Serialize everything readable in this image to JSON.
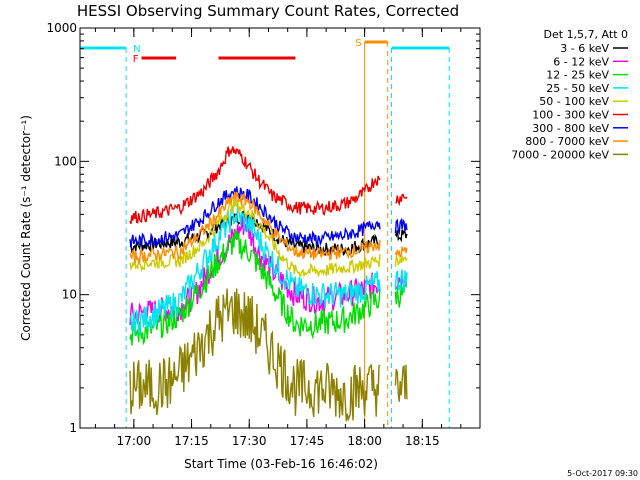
{
  "chart_data": {
    "type": "line",
    "title": "HESSI Observing Summary Count Rates, Corrected",
    "ylabel": "Corrected Count Rate (s⁻¹ detector⁻¹)",
    "xlabel": "Start Time (03-Feb-16 16:46:02)",
    "y_scale": "log",
    "ylim": [
      1,
      1000
    ],
    "y_ticks": [
      1,
      10,
      100,
      1000
    ],
    "y_tick_labels": [
      "1",
      "10",
      "100",
      "1000"
    ],
    "xlim": [
      "16:46",
      "18:30"
    ],
    "x_ticks": [
      "17:00",
      "17:15",
      "17:30",
      "17:45",
      "18:00",
      "18:15"
    ],
    "grid": false,
    "legend_header": "Det 1,5,7, Att 0",
    "legend_placement": "top-right outside",
    "timestamp": "5-Oct-2017 09:30",
    "data_intervals": [
      [
        "16:59",
        "18:04"
      ],
      [
        "18:08",
        "18:11"
      ]
    ],
    "flags": [
      {
        "label": "N",
        "color": "#00e5ee",
        "intervals": [
          [
            "16:46",
            "16:58"
          ],
          [
            "18:07",
            "18:22"
          ]
        ]
      },
      {
        "label": "F",
        "color": "#ee0000",
        "intervals": [
          [
            "17:02",
            "17:11"
          ],
          [
            "17:22",
            "17:42"
          ]
        ]
      },
      {
        "label": "S",
        "color": "#ff8c00",
        "intervals": [
          [
            "18:00",
            "18:06"
          ]
        ]
      }
    ],
    "series": [
      {
        "name": "3 - 6 keV",
        "color": "#000000",
        "values": [
          [
            "16:59",
            23
          ],
          [
            "17:05",
            24
          ],
          [
            "17:12",
            25
          ],
          [
            "17:18",
            28
          ],
          [
            "17:22",
            33
          ],
          [
            "17:26",
            37
          ],
          [
            "17:30",
            40
          ],
          [
            "17:34",
            32
          ],
          [
            "17:38",
            26
          ],
          [
            "17:42",
            23
          ],
          [
            "17:48",
            22
          ],
          [
            "17:55",
            22
          ],
          [
            "18:00",
            24
          ],
          [
            "18:03",
            25
          ],
          [
            "18:08",
            27
          ],
          [
            "18:10",
            28
          ]
        ]
      },
      {
        "name": "6 - 12 keV",
        "color": "#ee00ee",
        "values": [
          [
            "16:59",
            7
          ],
          [
            "17:05",
            7.5
          ],
          [
            "17:12",
            8
          ],
          [
            "17:16",
            10
          ],
          [
            "17:20",
            16
          ],
          [
            "17:25",
            25
          ],
          [
            "17:29",
            35
          ],
          [
            "17:32",
            22
          ],
          [
            "17:36",
            15
          ],
          [
            "17:42",
            10
          ],
          [
            "17:48",
            9
          ],
          [
            "17:55",
            10
          ],
          [
            "18:00",
            11
          ],
          [
            "18:03",
            12
          ],
          [
            "18:08",
            13
          ],
          [
            "18:10",
            14
          ]
        ]
      },
      {
        "name": "12 - 25 keV",
        "color": "#00dd00",
        "values": [
          [
            "16:59",
            5
          ],
          [
            "17:05",
            5.5
          ],
          [
            "17:12",
            7
          ],
          [
            "17:18",
            12
          ],
          [
            "17:22",
            18
          ],
          [
            "17:26",
            25
          ],
          [
            "17:30",
            21
          ],
          [
            "17:34",
            14
          ],
          [
            "17:38",
            9
          ],
          [
            "17:42",
            6
          ],
          [
            "17:48",
            6
          ],
          [
            "17:55",
            6.5
          ],
          [
            "18:00",
            8
          ],
          [
            "18:03",
            9
          ],
          [
            "18:08",
            10
          ],
          [
            "18:10",
            10
          ]
        ]
      },
      {
        "name": "25 - 50 keV",
        "color": "#00e5ee",
        "values": [
          [
            "16:59",
            6
          ],
          [
            "17:05",
            7
          ],
          [
            "17:12",
            9
          ],
          [
            "17:18",
            17
          ],
          [
            "17:22",
            27
          ],
          [
            "17:26",
            40
          ],
          [
            "17:30",
            34
          ],
          [
            "17:34",
            22
          ],
          [
            "17:38",
            15
          ],
          [
            "17:42",
            11
          ],
          [
            "17:48",
            10
          ],
          [
            "17:55",
            10
          ],
          [
            "18:00",
            11
          ],
          [
            "18:03",
            12
          ],
          [
            "18:08",
            13
          ],
          [
            "18:10",
            13
          ]
        ]
      },
      {
        "name": "50 - 100 keV",
        "color": "#cccc00",
        "values": [
          [
            "16:59",
            17
          ],
          [
            "17:05",
            17.5
          ],
          [
            "17:12",
            18
          ],
          [
            "17:18",
            24
          ],
          [
            "17:22",
            35
          ],
          [
            "17:26",
            48
          ],
          [
            "17:30",
            42
          ],
          [
            "17:34",
            30
          ],
          [
            "17:38",
            20
          ],
          [
            "17:42",
            15
          ],
          [
            "17:48",
            15
          ],
          [
            "17:55",
            16
          ],
          [
            "18:00",
            17
          ],
          [
            "18:03",
            18
          ],
          [
            "18:08",
            18
          ],
          [
            "18:10",
            19
          ]
        ]
      },
      {
        "name": "100 - 300 keV",
        "color": "#ee0000",
        "values": [
          [
            "16:59",
            38
          ],
          [
            "17:05",
            40
          ],
          [
            "17:12",
            45
          ],
          [
            "17:18",
            60
          ],
          [
            "17:22",
            85
          ],
          [
            "17:25",
            125
          ],
          [
            "17:28",
            110
          ],
          [
            "17:32",
            75
          ],
          [
            "17:36",
            55
          ],
          [
            "17:42",
            45
          ],
          [
            "17:48",
            44
          ],
          [
            "17:55",
            48
          ],
          [
            "18:00",
            58
          ],
          [
            "18:03",
            75
          ],
          [
            "18:08",
            52
          ],
          [
            "18:10",
            55
          ]
        ]
      },
      {
        "name": "300 - 800 keV",
        "color": "#0000ee",
        "values": [
          [
            "16:59",
            25
          ],
          [
            "17:05",
            26
          ],
          [
            "17:12",
            28
          ],
          [
            "17:18",
            38
          ],
          [
            "17:22",
            50
          ],
          [
            "17:26",
            60
          ],
          [
            "17:30",
            55
          ],
          [
            "17:34",
            42
          ],
          [
            "17:38",
            32
          ],
          [
            "17:42",
            27
          ],
          [
            "17:48",
            26
          ],
          [
            "17:55",
            28
          ],
          [
            "18:00",
            31
          ],
          [
            "18:03",
            35
          ],
          [
            "18:08",
            32
          ],
          [
            "18:10",
            33
          ]
        ]
      },
      {
        "name": "800 - 7000 keV",
        "color": "#ff8c00",
        "values": [
          [
            "16:59",
            19
          ],
          [
            "17:05",
            20
          ],
          [
            "17:12",
            21
          ],
          [
            "17:18",
            30
          ],
          [
            "17:22",
            40
          ],
          [
            "17:26",
            54
          ],
          [
            "17:30",
            50
          ],
          [
            "17:34",
            36
          ],
          [
            "17:38",
            26
          ],
          [
            "17:42",
            21
          ],
          [
            "17:48",
            20
          ],
          [
            "17:55",
            21
          ],
          [
            "18:00",
            22
          ],
          [
            "18:03",
            24
          ],
          [
            "18:08",
            20
          ],
          [
            "18:10",
            21
          ]
        ]
      },
      {
        "name": "7000 - 20000 keV",
        "color": "#8b8000",
        "values": [
          [
            "16:59",
            2
          ],
          [
            "17:05",
            2
          ],
          [
            "17:10",
            2.2
          ],
          [
            "17:14",
            3
          ],
          [
            "17:18",
            4.5
          ],
          [
            "17:22",
            6.5
          ],
          [
            "17:26",
            7.8
          ],
          [
            "17:30",
            6.5
          ],
          [
            "17:34",
            4.5
          ],
          [
            "17:38",
            3
          ],
          [
            "17:42",
            2
          ],
          [
            "17:48",
            2
          ],
          [
            "17:55",
            1.8
          ],
          [
            "18:00",
            2
          ],
          [
            "18:03",
            2
          ],
          [
            "18:08",
            2
          ],
          [
            "18:10",
            2
          ]
        ]
      }
    ]
  }
}
